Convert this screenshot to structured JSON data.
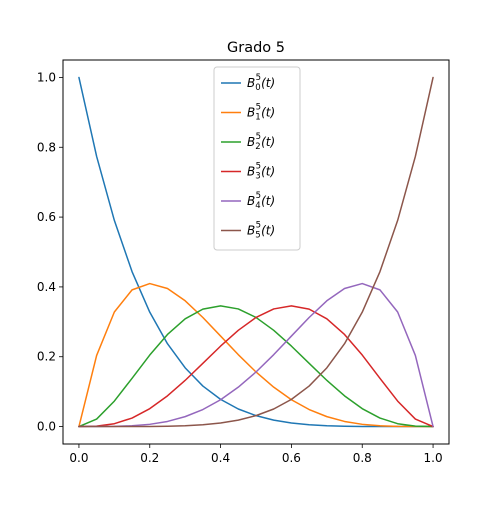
{
  "chart_data": {
    "type": "line",
    "title": "Grado 5",
    "xlabel": "",
    "ylabel": "",
    "xlim": [
      -0.045,
      1.045
    ],
    "ylim": [
      -0.05,
      1.05
    ],
    "x_ticks": [
      0.0,
      0.2,
      0.4,
      0.6,
      0.8,
      1.0
    ],
    "x_tick_labels": [
      "0.0",
      "0.2",
      "0.4",
      "0.6",
      "0.8",
      "1.0"
    ],
    "y_ticks": [
      0.0,
      0.2,
      0.4,
      0.6,
      0.8,
      1.0
    ],
    "y_tick_labels": [
      "0.0",
      "0.2",
      "0.4",
      "0.6",
      "0.8",
      "1.0"
    ],
    "grid": false,
    "legend_position": "top-center",
    "x": [
      0.0,
      0.05,
      0.1,
      0.15,
      0.2,
      0.25,
      0.3,
      0.35,
      0.4,
      0.45,
      0.5,
      0.55,
      0.6,
      0.65,
      0.7,
      0.75,
      0.8,
      0.85,
      0.9,
      0.95,
      1.0
    ],
    "series": [
      {
        "label": {
          "base": "B",
          "sup": "5",
          "sub": "0",
          "arg": "(t)"
        },
        "color": "#1f77b4",
        "values": [
          1.0,
          0.7738,
          0.5905,
          0.4437,
          0.3277,
          0.2373,
          0.1681,
          0.116,
          0.0778,
          0.0503,
          0.0313,
          0.0185,
          0.0102,
          0.0053,
          0.0024,
          0.001,
          0.0003,
          0.0001,
          0.0,
          0.0,
          0.0
        ]
      },
      {
        "label": {
          "base": "B",
          "sup": "5",
          "sub": "1",
          "arg": "(t)"
        },
        "color": "#ff7f0e",
        "values": [
          0.0,
          0.2036,
          0.3281,
          0.3915,
          0.4096,
          0.3955,
          0.3602,
          0.3124,
          0.2592,
          0.2059,
          0.1563,
          0.1128,
          0.0768,
          0.0488,
          0.0284,
          0.0146,
          0.0064,
          0.0022,
          0.0005,
          0.0,
          0.0
        ]
      },
      {
        "label": {
          "base": "B",
          "sup": "5",
          "sub": "2",
          "arg": "(t)"
        },
        "color": "#2ca02c",
        "values": [
          0.0,
          0.0214,
          0.0729,
          0.1382,
          0.2048,
          0.2637,
          0.3087,
          0.3364,
          0.3456,
          0.3369,
          0.3125,
          0.2757,
          0.2304,
          0.1811,
          0.1323,
          0.0879,
          0.0512,
          0.0244,
          0.0081,
          0.0011,
          0.0
        ]
      },
      {
        "label": {
          "base": "B",
          "sup": "5",
          "sub": "3",
          "arg": "(t)"
        },
        "color": "#d62728",
        "values": [
          0.0,
          0.0011,
          0.0081,
          0.0244,
          0.0512,
          0.0879,
          0.1323,
          0.1811,
          0.2304,
          0.2757,
          0.3125,
          0.3369,
          0.3456,
          0.3364,
          0.3087,
          0.2637,
          0.2048,
          0.1382,
          0.0729,
          0.0214,
          0.0
        ]
      },
      {
        "label": {
          "base": "B",
          "sup": "5",
          "sub": "4",
          "arg": "(t)"
        },
        "color": "#9467bd",
        "values": [
          0.0,
          0.0,
          0.0005,
          0.0022,
          0.0064,
          0.0146,
          0.0284,
          0.0488,
          0.0768,
          0.1128,
          0.1563,
          0.2059,
          0.2592,
          0.3124,
          0.3602,
          0.3955,
          0.4096,
          0.3915,
          0.3281,
          0.2036,
          0.0
        ]
      },
      {
        "label": {
          "base": "B",
          "sup": "5",
          "sub": "5",
          "arg": "(t)"
        },
        "color": "#8c564b",
        "values": [
          0.0,
          0.0,
          0.0,
          0.0001,
          0.0003,
          0.001,
          0.0024,
          0.0053,
          0.0102,
          0.0185,
          0.0313,
          0.0503,
          0.0778,
          0.116,
          0.1681,
          0.2373,
          0.3277,
          0.4437,
          0.5905,
          0.7738,
          1.0
        ]
      }
    ]
  }
}
